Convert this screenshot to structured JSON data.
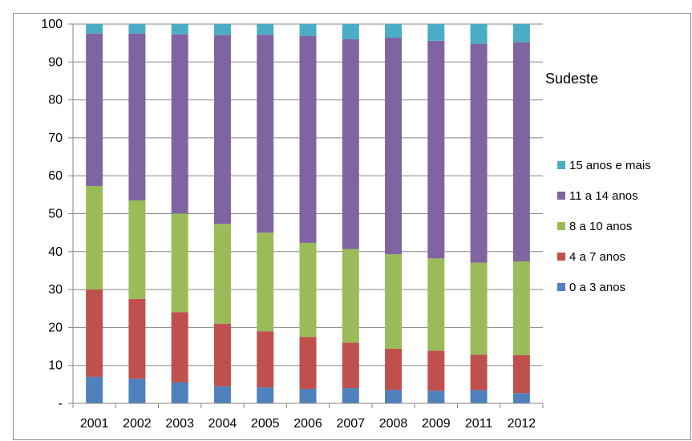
{
  "chart_data": {
    "type": "bar",
    "stacked": true,
    "title": "Sudeste",
    "categories": [
      "2001",
      "2002",
      "2003",
      "2004",
      "2005",
      "2006",
      "2007",
      "2008",
      "2009",
      "2011",
      "2012"
    ],
    "series": [
      {
        "name": "0 a 3 anos",
        "color": "#4f81bd",
        "values": [
          7.0,
          6.5,
          5.5,
          4.5,
          4.2,
          3.8,
          4.0,
          3.5,
          3.3,
          3.5,
          2.7
        ]
      },
      {
        "name": "4 a 7 anos",
        "color": "#c0504d",
        "values": [
          23.0,
          21.0,
          18.5,
          16.5,
          14.8,
          13.7,
          12.0,
          10.9,
          10.6,
          9.3,
          10.0
        ]
      },
      {
        "name": "8 a 10 anos",
        "color": "#9bbb59",
        "values": [
          27.3,
          26.0,
          26.0,
          26.3,
          26.0,
          24.8,
          24.7,
          24.9,
          24.3,
          24.3,
          24.7
        ]
      },
      {
        "name": "11 a 14 anos",
        "color": "#8064a2",
        "values": [
          40.2,
          44.0,
          47.3,
          49.8,
          52.2,
          54.6,
          55.3,
          57.1,
          57.4,
          57.7,
          57.8
        ]
      },
      {
        "name": "15 anos e mais",
        "color": "#4bacc6",
        "values": [
          2.5,
          2.5,
          2.7,
          2.9,
          2.8,
          3.1,
          4.0,
          3.6,
          4.4,
          5.2,
          4.8
        ]
      }
    ],
    "legend_order": [
      "15 anos e mais",
      "11 a 14 anos",
      "8 a 10 anos",
      "4 a 7 anos",
      "0 a 3 anos"
    ],
    "yticks": [
      "-",
      "10",
      "20",
      "30",
      "40",
      "50",
      "60",
      "70",
      "80",
      "90",
      "100"
    ],
    "ylim": [
      0,
      100
    ],
    "grid": true,
    "legend_position": "right"
  }
}
